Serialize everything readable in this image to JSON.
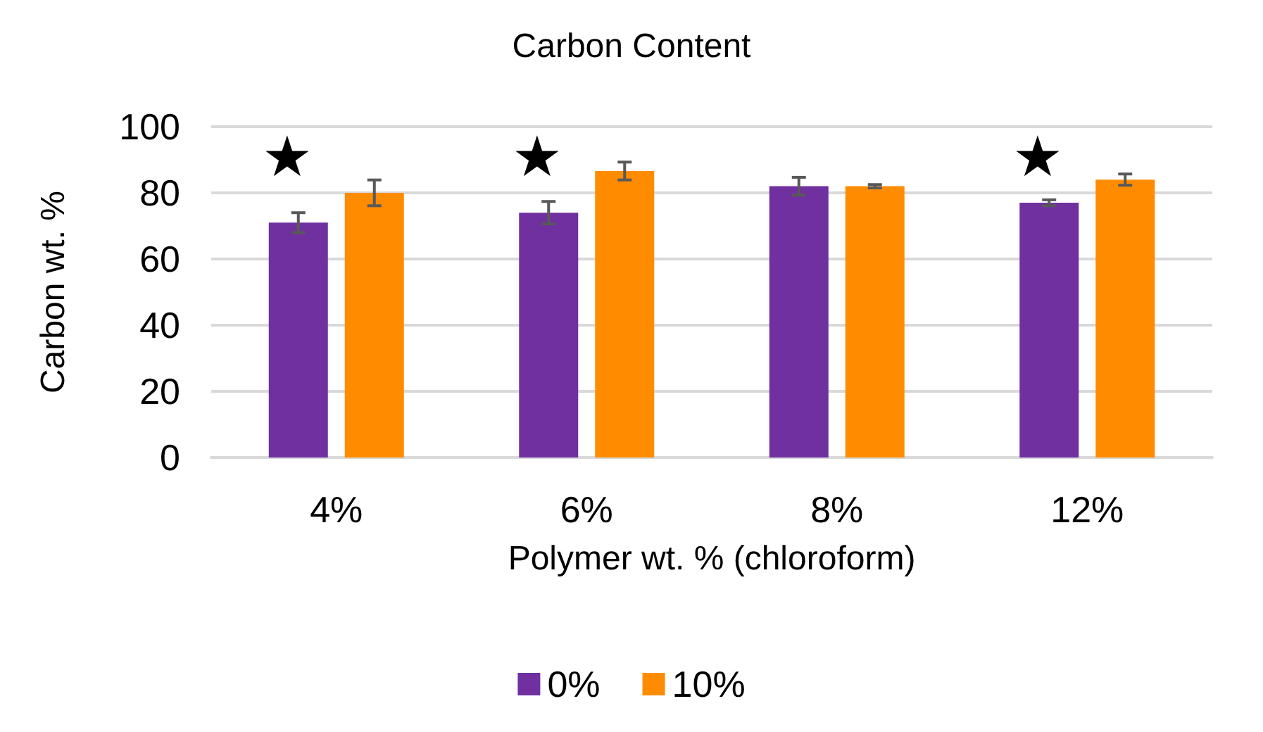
{
  "chart_data": {
    "type": "bar",
    "title": "Carbon Content",
    "xlabel": "Polymer wt. % (chloroform)",
    "ylabel": "Carbon wt. %",
    "categories": [
      "4%",
      "6%",
      "8%",
      "12%"
    ],
    "series": [
      {
        "name": "0%",
        "color": "#7030a0",
        "values": [
          71,
          74,
          82,
          77
        ],
        "errors": [
          3,
          3.4,
          2.7,
          0.9
        ]
      },
      {
        "name": "10%",
        "color": "#ff8c00",
        "values": [
          80,
          86.6,
          82,
          84
        ],
        "errors": [
          3.9,
          2.7,
          0.5,
          1.7
        ]
      }
    ],
    "ylim": [
      0,
      100
    ],
    "yticks": [
      0,
      20,
      40,
      60,
      80,
      100
    ],
    "grid": "y",
    "legend": "bottom",
    "annotations": [
      "★",
      "★",
      "★"
    ]
  }
}
